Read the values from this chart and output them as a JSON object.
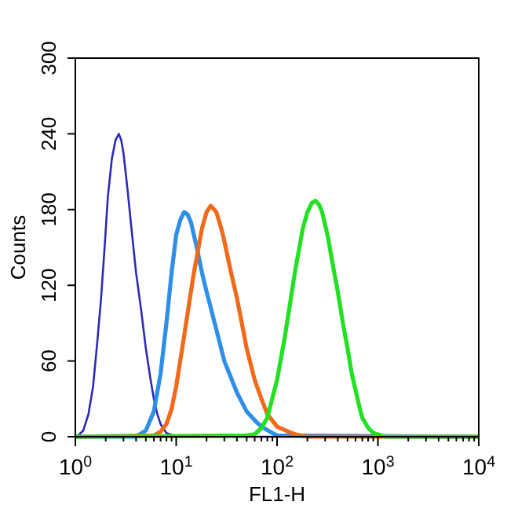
{
  "chart_data": {
    "type": "line",
    "xlabel": "FL1-H",
    "ylabel": "Counts",
    "log": "x",
    "xlim": [
      1,
      10000
    ],
    "ylim": [
      0,
      300
    ],
    "xticks": [
      {
        "value": 1,
        "label": "10$^{0}$"
      },
      {
        "value": 2,
        "label": null
      },
      {
        "value": 3,
        "label": null
      },
      {
        "value": 4,
        "label": null
      },
      {
        "value": 5,
        "label": null
      },
      {
        "value": 6,
        "label": null
      },
      {
        "value": 7,
        "label": null
      },
      {
        "value": 8,
        "label": null
      },
      {
        "value": 9,
        "label": null
      },
      {
        "value": 10,
        "label": "10$^{1}$"
      },
      {
        "value": 20,
        "label": null
      },
      {
        "value": 30,
        "label": null
      },
      {
        "value": 40,
        "label": null
      },
      {
        "value": 50,
        "label": null
      },
      {
        "value": 60,
        "label": null
      },
      {
        "value": 70,
        "label": null
      },
      {
        "value": 80,
        "label": null
      },
      {
        "value": 90,
        "label": null
      },
      {
        "value": 100,
        "label": "10$^{2}$"
      },
      {
        "value": 200,
        "label": null
      },
      {
        "value": 300,
        "label": null
      },
      {
        "value": 400,
        "label": null
      },
      {
        "value": 500,
        "label": null
      },
      {
        "value": 600,
        "label": null
      },
      {
        "value": 700,
        "label": null
      },
      {
        "value": 800,
        "label": null
      },
      {
        "value": 900,
        "label": null
      },
      {
        "value": 1000,
        "label": "10$^{3}$"
      },
      {
        "value": 2000,
        "label": null
      },
      {
        "value": 3000,
        "label": null
      },
      {
        "value": 4000,
        "label": null
      },
      {
        "value": 5000,
        "label": null
      },
      {
        "value": 6000,
        "label": null
      },
      {
        "value": 7000,
        "label": null
      },
      {
        "value": 8000,
        "label": null
      },
      {
        "value": 9000,
        "label": null
      },
      {
        "value": 10000,
        "label": "10$^{4}$"
      }
    ],
    "yticks": [
      0,
      60,
      120,
      180,
      240,
      300
    ],
    "grid": false,
    "marker": "none",
    "series": [
      {
        "color": "#2a2ab8",
        "x": [
          1,
          1.1,
          1.2,
          1.35,
          1.5,
          1.65,
          1.8,
          1.95,
          2.1,
          2.3,
          2.5,
          2.7,
          2.85,
          3.0,
          3.3,
          3.6,
          4,
          4.5,
          5,
          5.5,
          6,
          6.5,
          7,
          8,
          10,
          10000
        ],
        "values": [
          0,
          2,
          5,
          18,
          40,
          75,
          110,
          150,
          190,
          220,
          235,
          240,
          235,
          225,
          195,
          165,
          130,
          100,
          70,
          48,
          30,
          18,
          10,
          3,
          0,
          0
        ]
      },
      {
        "color": "#2f8fe8",
        "x": [
          1,
          4,
          5,
          6,
          7,
          8,
          9,
          10,
          11,
          12,
          13,
          14,
          16,
          18,
          20,
          25,
          30,
          40,
          50,
          60,
          70,
          85,
          100,
          10000
        ],
        "values": [
          0,
          0,
          5,
          20,
          50,
          90,
          130,
          160,
          172,
          178,
          176,
          170,
          150,
          130,
          115,
          85,
          60,
          35,
          20,
          13,
          8,
          4,
          1,
          0
        ]
      },
      {
        "color": "#f06a1a",
        "x": [
          1,
          6,
          7,
          8,
          9,
          10,
          12,
          14,
          15,
          18,
          20,
          22,
          25,
          28,
          30,
          35,
          40,
          50,
          60,
          70,
          80,
          100,
          130,
          150,
          200,
          10000
        ],
        "values": [
          0,
          1,
          4,
          10,
          22,
          40,
          80,
          115,
          130,
          165,
          178,
          183,
          178,
          165,
          155,
          130,
          110,
          70,
          45,
          30,
          18,
          8,
          4,
          2,
          0,
          0
        ]
      },
      {
        "color": "#22e022",
        "x": [
          1,
          50,
          60,
          70,
          80,
          100,
          120,
          150,
          180,
          200,
          220,
          240,
          260,
          280,
          320,
          350,
          400,
          450,
          500,
          550,
          650,
          700,
          800,
          900,
          1200,
          10000
        ],
        "values": [
          0,
          1,
          2,
          7,
          15,
          45,
          80,
          130,
          165,
          178,
          185,
          187,
          184,
          178,
          158,
          140,
          115,
          90,
          70,
          50,
          25,
          15,
          7,
          3,
          0,
          0
        ]
      }
    ]
  }
}
